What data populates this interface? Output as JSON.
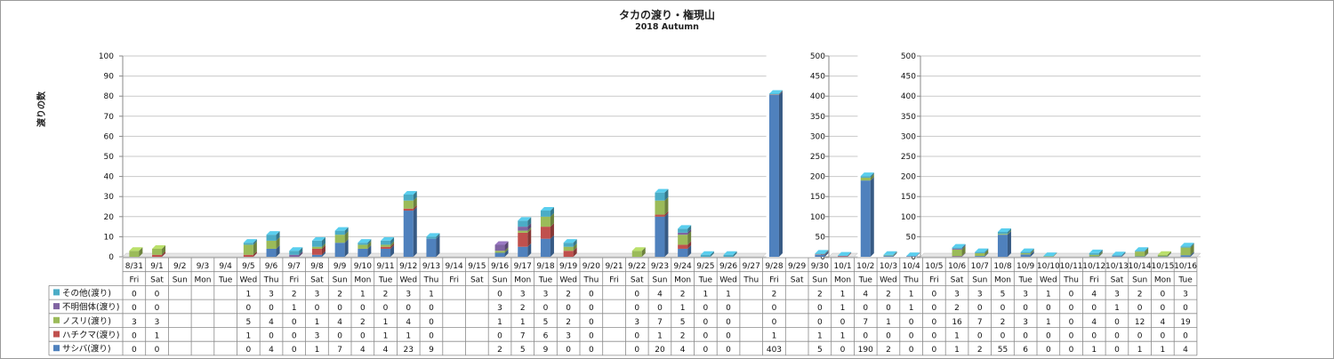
{
  "title": "タカの渡り・権現山",
  "subtitle": "2018 Autumn",
  "chart_data": {
    "type": "bar",
    "stacked": true,
    "ylabel": "渡りの数",
    "grid": true,
    "legend_position": "left (in data table)",
    "panels": [
      {
        "ylim": [
          0,
          100
        ],
        "ticks": [
          0,
          10,
          20,
          30,
          40,
          50,
          60,
          70,
          80,
          90,
          100
        ]
      },
      {
        "ylim": [
          0,
          500
        ],
        "ticks": [
          0,
          50,
          100,
          150,
          200,
          250,
          300,
          350,
          400,
          450,
          500
        ]
      },
      {
        "ylim": [
          0,
          500
        ],
        "ticks": [
          0,
          50,
          100,
          150,
          200,
          250,
          300,
          350,
          400,
          450,
          500
        ]
      }
    ],
    "categories": [
      "8/31",
      "9/1",
      "9/2",
      "9/3",
      "9/4",
      "9/5",
      "9/6",
      "9/7",
      "9/8",
      "9/9",
      "9/10",
      "9/11",
      "9/12",
      "9/13",
      "9/14",
      "9/15",
      "9/16",
      "9/17",
      "9/18",
      "9/19",
      "9/20",
      "9/21",
      "9/22",
      "9/23",
      "9/24",
      "9/25",
      "9/26",
      "9/27",
      "9/28",
      "9/29",
      "9/30",
      "10/1",
      "10/2",
      "10/3",
      "10/4",
      "10/5",
      "10/6",
      "10/7",
      "10/8",
      "10/9",
      "10/10",
      "10/11",
      "10/12",
      "10/13",
      "10/14",
      "10/15",
      "10/16"
    ],
    "weekdays": [
      "Fri",
      "Sat",
      "Sun",
      "Mon",
      "Tue",
      "Wed",
      "Thu",
      "Fri",
      "Sat",
      "Sun",
      "Mon",
      "Tue",
      "Wed",
      "Thu",
      "Fri",
      "Sat",
      "Sun",
      "Mon",
      "Tue",
      "Wed",
      "Thu",
      "Fri",
      "Sat",
      "Sun",
      "Mon",
      "Tue",
      "Wed",
      "Thu",
      "Fri",
      "Sat",
      "Sun",
      "Mon",
      "Tue",
      "Wed",
      "Thu",
      "Fri",
      "Sat",
      "Sun",
      "Mon",
      "Tue",
      "Wed",
      "Thu",
      "Fri",
      "Sat",
      "Sun",
      "Mon",
      "Tue"
    ],
    "series": [
      {
        "name": "その他(渡り)",
        "color": "#4bacc6",
        "values": [
          "0",
          "0",
          "",
          "",
          "",
          "1",
          "3",
          "2",
          "3",
          "2",
          "1",
          "2",
          "3",
          "1",
          "",
          "",
          "0",
          "3",
          "3",
          "2",
          "0",
          "",
          "0",
          "4",
          "2",
          "1",
          "1",
          "",
          "2",
          "",
          "2",
          "1",
          "4",
          "2",
          "1",
          "0",
          "3",
          "3",
          "5",
          "3",
          "1",
          "0",
          "4",
          "3",
          "2",
          "0",
          "3"
        ]
      },
      {
        "name": "不明個体(渡り)",
        "color": "#8064a2",
        "values": [
          "0",
          "0",
          "",
          "",
          "",
          "0",
          "0",
          "1",
          "0",
          "0",
          "0",
          "0",
          "0",
          "0",
          "",
          "",
          "3",
          "2",
          "0",
          "0",
          "0",
          "",
          "0",
          "0",
          "1",
          "0",
          "0",
          "",
          "0",
          "",
          "0",
          "1",
          "0",
          "0",
          "1",
          "0",
          "2",
          "0",
          "0",
          "0",
          "0",
          "0",
          "0",
          "1",
          "0",
          "0",
          "0"
        ]
      },
      {
        "name": "ノスリ(渡り)",
        "color": "#9bbb59",
        "values": [
          "3",
          "3",
          "",
          "",
          "",
          "5",
          "4",
          "0",
          "1",
          "4",
          "2",
          "1",
          "4",
          "0",
          "",
          "",
          "1",
          "1",
          "5",
          "2",
          "0",
          "",
          "3",
          "7",
          "5",
          "0",
          "0",
          "",
          "0",
          "",
          "0",
          "0",
          "7",
          "1",
          "0",
          "0",
          "16",
          "7",
          "2",
          "3",
          "1",
          "0",
          "4",
          "0",
          "12",
          "4",
          "19"
        ]
      },
      {
        "name": "ハチクマ(渡り)",
        "color": "#c0504d",
        "values": [
          "0",
          "1",
          "",
          "",
          "",
          "1",
          "0",
          "0",
          "3",
          "0",
          "0",
          "1",
          "1",
          "0",
          "",
          "",
          "0",
          "7",
          "6",
          "3",
          "0",
          "",
          "0",
          "1",
          "2",
          "0",
          "0",
          "",
          "1",
          "",
          "1",
          "1",
          "0",
          "0",
          "0",
          "0",
          "1",
          "0",
          "0",
          "0",
          "0",
          "0",
          "0",
          "0",
          "0",
          "0",
          "0"
        ]
      },
      {
        "name": "サシバ(渡り)",
        "color": "#4f81bd",
        "values": [
          "0",
          "0",
          "",
          "",
          "",
          "0",
          "4",
          "0",
          "1",
          "7",
          "4",
          "4",
          "23",
          "9",
          "",
          "",
          "2",
          "5",
          "9",
          "0",
          "0",
          "",
          "0",
          "20",
          "4",
          "0",
          "0",
          "",
          "403",
          "",
          "5",
          "0",
          "190",
          "2",
          "0",
          "0",
          "1",
          "2",
          "55",
          "6",
          "0",
          "0",
          "1",
          "0",
          "1",
          "1",
          "4"
        ]
      }
    ]
  }
}
